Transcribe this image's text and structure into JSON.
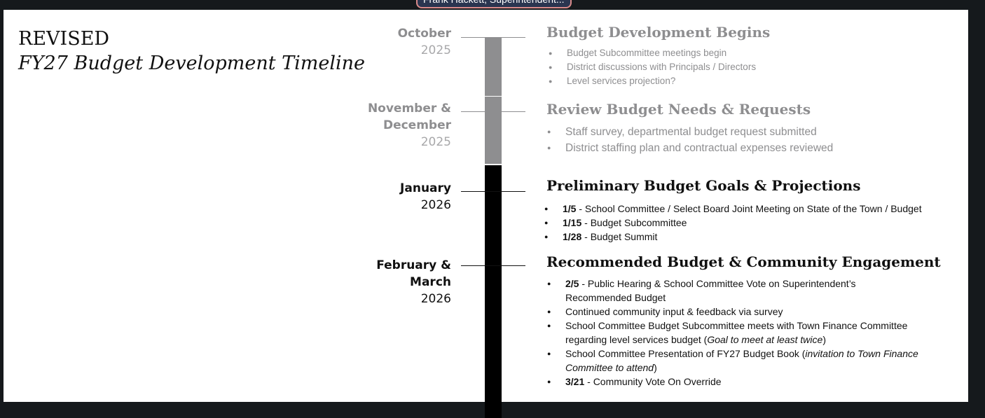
{
  "meeting": {
    "speaker_label": "Frank Hackett, Superintendent..."
  },
  "colors": {
    "past": "#8e8e90",
    "current": "#000000",
    "status_dot": "#2ecc54"
  },
  "slide": {
    "title_line1": "REVISED",
    "title_line2": "FY27 Budget Development Timeline",
    "milestones": [
      {
        "month": "October",
        "month2": "",
        "year": "2025",
        "state": "past"
      },
      {
        "month": "November &",
        "month2": "December",
        "year": "2025",
        "state": "past"
      },
      {
        "month": "January",
        "month2": "",
        "year": "2026",
        "state": "current"
      },
      {
        "month": "February &",
        "month2": "March",
        "year": "2026",
        "state": "current"
      }
    ],
    "sections": [
      {
        "heading": "Budget Development Begins",
        "items": [
          {
            "bold": "",
            "text": "Budget Subcommittee meetings begin",
            "italic": "",
            "after": ""
          },
          {
            "bold": "",
            "text": "District discussions with Principals / Directors",
            "italic": "",
            "after": ""
          },
          {
            "bold": "",
            "text": "Level services projection?",
            "italic": "",
            "after": ""
          }
        ]
      },
      {
        "heading": "Review Budget Needs & Requests",
        "items": [
          {
            "bold": "",
            "text": "Staff survey, departmental budget request submitted",
            "italic": "",
            "after": ""
          },
          {
            "bold": "",
            "text": "District staffing plan and contractual expenses reviewed",
            "italic": "",
            "after": ""
          }
        ]
      },
      {
        "heading": "Preliminary Budget Goals & Projections",
        "items": [
          {
            "bold": "1/5",
            "text": " - School Committee / Select Board Joint Meeting on State of the Town / Budget",
            "italic": "",
            "after": ""
          },
          {
            "bold": "1/15",
            "text": " - Budget Subcommittee",
            "italic": "",
            "after": ""
          },
          {
            "bold": "1/28",
            "text": " - Budget Summit",
            "italic": "",
            "after": ""
          }
        ]
      },
      {
        "heading": "Recommended Budget & Community Engagement",
        "items": [
          {
            "bold": "2/5",
            "text": " - Public Hearing & School Committee Vote on Superintendent’s\nRecommended Budget",
            "italic": "",
            "after": ""
          },
          {
            "bold": "",
            "text": "Continued community input & feedback via survey",
            "italic": "",
            "after": ""
          },
          {
            "bold": "",
            "text": "School Committee Budget Subcommittee meets with Town Finance Committee\nregarding level services budget (",
            "italic": "Goal to meet at least twice",
            "after": ")"
          },
          {
            "bold": "",
            "text": "School Committee Presentation of FY27 Budget Book (",
            "italic": "invitation to Town Finance\nCommittee to attend",
            "after": ")"
          },
          {
            "bold": "3/21",
            "text": " - Community Vote On Override",
            "italic": "",
            "after": ""
          }
        ]
      }
    ]
  }
}
